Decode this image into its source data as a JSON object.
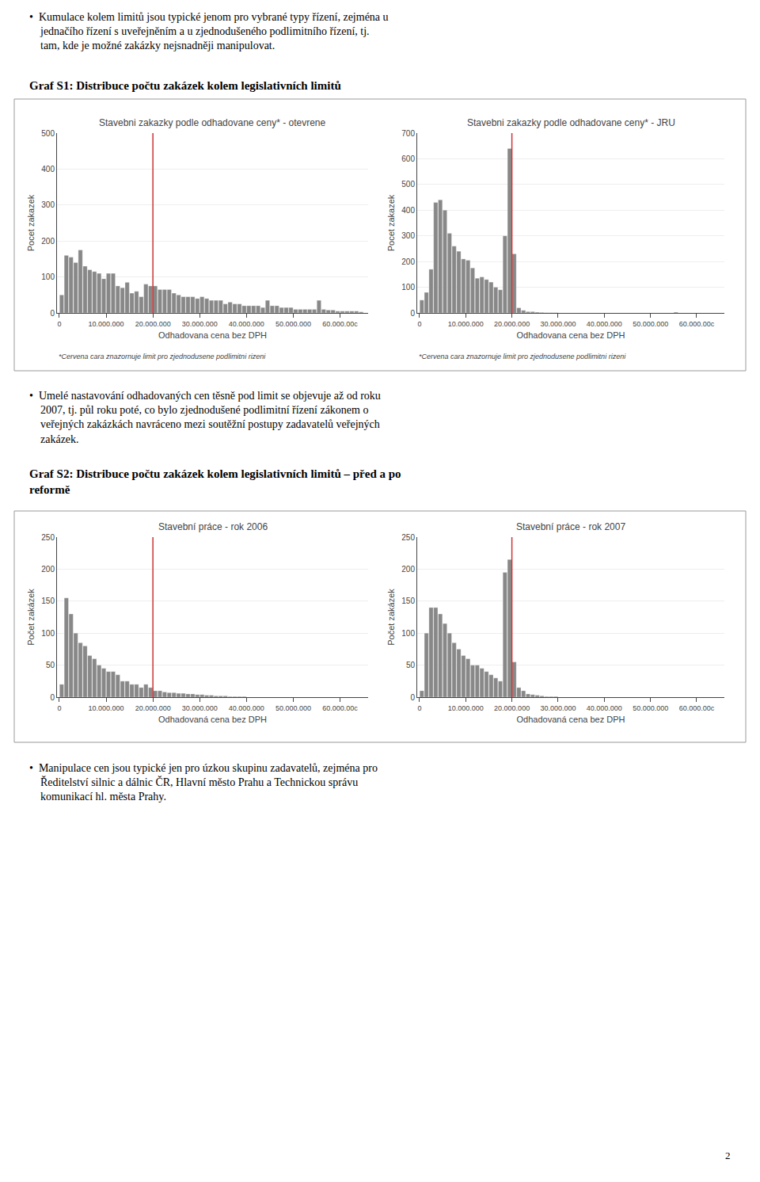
{
  "paragraphs": [
    [
      "•  Kumulace kolem limitů jsou typické jenom pro vybrané typy řízení, zejména u",
      "jednačího řízení s uveřejněním a u zjednodušeného podlimitního řízení, tj.",
      "tam, kde je možné zakázky nejsnadněji manipulovat."
    ],
    [
      "•  Umelé nastavování odhadovaných cen těsně pod limit se objevuje až od roku",
      "2007, tj. půl roku poté, co bylo zjednodušené podlimitní řízení zákonem o",
      "veřejných zakázkách navráceno mezi soutěžní postupy zadavatelů veřejných",
      "zakázek."
    ],
    [
      "•  Manipulace cen jsou typické jen pro úzkou skupinu zadavatelů, zejména pro",
      "Ředitelství silnic a dálnic ČR, Hlavní město Prahu a Technickou správu",
      "komunikací hl. města Prahy."
    ]
  ],
  "headings": [
    [
      "Graf S1: Distribuce počtu zakázek kolem legislativních limitů"
    ],
    [
      "Graf S2: Distribuce počtu zakázek kolem legislativních limitů – před a po",
      "reformě"
    ]
  ],
  "page_number": "2",
  "chart_data": [
    {
      "type": "histogram",
      "title": "Stavebni zakazky podle odhadovane ceny* - otevrene",
      "xlabel": "Odhadovana cena bez DPH",
      "ylabel": "Pocet zakazek",
      "footnote": "*Cervena cara znazornuje limit pro zjednodusene podlimitni rizeni",
      "color": "#888888",
      "bins": [
        0,
        1000000,
        2000000,
        3000000,
        4000000,
        5000000,
        6000000,
        7000000,
        8000000,
        9000000,
        10000000,
        11000000,
        12000000,
        13000000,
        14000000,
        15000000,
        16000000,
        17000000,
        18000000,
        19000000,
        20000000,
        21000000,
        22000000,
        23000000,
        24000000,
        25000000,
        26000000,
        27000000,
        28000000,
        29000000,
        30000000,
        31000000,
        32000000,
        33000000,
        34000000,
        35000000,
        36000000,
        37000000,
        38000000,
        39000000,
        40000000,
        41000000,
        42000000,
        43000000,
        44000000,
        45000000,
        46000000,
        47000000,
        48000000,
        49000000,
        50000000,
        51000000,
        52000000,
        53000000,
        54000000,
        55000000,
        56000000,
        57000000,
        58000000,
        59000000,
        60000000,
        61000000,
        62000000,
        63000000,
        64000000,
        65000000
      ],
      "values": [
        50,
        160,
        155,
        140,
        175,
        130,
        120,
        115,
        110,
        95,
        110,
        110,
        75,
        70,
        85,
        55,
        60,
        45,
        80,
        75,
        75,
        65,
        65,
        65,
        55,
        50,
        45,
        45,
        45,
        40,
        45,
        40,
        35,
        35,
        35,
        25,
        30,
        25,
        25,
        20,
        20,
        20,
        20,
        15,
        35,
        20,
        20,
        15,
        15,
        15,
        10,
        10,
        10,
        10,
        10,
        35,
        10,
        8,
        8,
        5,
        5,
        5,
        5,
        5,
        3
      ],
      "lines": [
        {
          "x": 20000000,
          "color": "#cc3333"
        }
      ],
      "xlim": [
        -500000,
        66000000
      ],
      "xticks": [
        0,
        {
          "value": 10000000,
          "label": "10.000.000"
        },
        {
          "value": 20000000,
          "label": "20.000.000"
        },
        {
          "value": 30000000,
          "label": "30.000.000"
        },
        {
          "value": 40000000,
          "label": "40.000.000"
        },
        {
          "value": 50000000,
          "label": "50.000.000"
        },
        {
          "value": 60000000,
          "label": "60.000.00c"
        }
      ],
      "ylim": [
        0,
        500
      ],
      "yticks": [
        0,
        100,
        200,
        300,
        400,
        500
      ],
      "grid": true
    },
    {
      "type": "histogram",
      "title": "Stavebni zakazky podle odhadovane ceny* - JRU",
      "xlabel": "Odhadovana cena bez DPH",
      "ylabel": "Pocet zakazek",
      "footnote": "*Cervena cara znazornuje limit pro zjednodusene podlimitni rizeni",
      "color": "#888888",
      "bins": [
        0,
        1000000,
        2000000,
        3000000,
        4000000,
        5000000,
        6000000,
        7000000,
        8000000,
        9000000,
        10000000,
        11000000,
        12000000,
        13000000,
        14000000,
        15000000,
        16000000,
        17000000,
        18000000,
        19000000,
        20000000,
        21000000,
        22000000,
        23000000,
        24000000,
        25000000,
        26000000,
        27000000,
        28000000,
        29000000,
        30000000,
        31000000,
        32000000,
        33000000,
        34000000,
        35000000,
        36000000,
        37000000,
        38000000,
        39000000,
        40000000,
        41000000,
        42000000,
        43000000,
        44000000,
        45000000,
        46000000,
        47000000,
        48000000,
        49000000,
        50000000,
        51000000,
        52000000,
        53000000,
        54000000,
        55000000,
        56000000,
        57000000,
        58000000,
        59000000,
        60000000,
        61000000,
        62000000,
        63000000,
        64000000,
        65000000
      ],
      "values": [
        50,
        80,
        170,
        430,
        440,
        400,
        310,
        260,
        240,
        210,
        205,
        175,
        135,
        140,
        130,
        120,
        100,
        90,
        300,
        640,
        230,
        20,
        10,
        5,
        5,
        3,
        2,
        1,
        1,
        1,
        0,
        0,
        0,
        0,
        0,
        0,
        0,
        0,
        0,
        0,
        0,
        0,
        0,
        0,
        0,
        0,
        0,
        0,
        0,
        0,
        0,
        0,
        0,
        0,
        0,
        3,
        0,
        0,
        0,
        0,
        0,
        0,
        0,
        0,
        0
      ],
      "lines": [
        {
          "x": 20000000,
          "color": "#cc3333"
        }
      ],
      "xlim": [
        -500000,
        66000000
      ],
      "xticks": [
        0,
        {
          "value": 10000000,
          "label": "10.000.000"
        },
        {
          "value": 20000000,
          "label": "20.000.000"
        },
        {
          "value": 30000000,
          "label": "30.000.000"
        },
        {
          "value": 40000000,
          "label": "40.000.000"
        },
        {
          "value": 50000000,
          "label": "50.000.000"
        },
        {
          "value": 60000000,
          "label": "60.000.00c"
        }
      ],
      "ylim": [
        0,
        700
      ],
      "yticks": [
        0,
        100,
        200,
        300,
        400,
        500,
        600,
        700
      ],
      "grid": true
    },
    {
      "type": "histogram",
      "title": "Stavební práce - rok 2006",
      "xlabel": "Odhadovaná cena bez DPH",
      "ylabel": "Počet zakázek",
      "color": "#888888",
      "bins": [
        0,
        1000000,
        2000000,
        3000000,
        4000000,
        5000000,
        6000000,
        7000000,
        8000000,
        9000000,
        10000000,
        11000000,
        12000000,
        13000000,
        14000000,
        15000000,
        16000000,
        17000000,
        18000000,
        19000000,
        20000000,
        21000000,
        22000000,
        23000000,
        24000000,
        25000000,
        26000000,
        27000000,
        28000000,
        29000000,
        30000000,
        31000000,
        32000000,
        33000000,
        34000000,
        35000000,
        36000000,
        37000000,
        38000000,
        39000000,
        40000000,
        41000000,
        42000000,
        43000000,
        44000000,
        45000000,
        46000000,
        47000000,
        48000000,
        49000000,
        50000000,
        51000000,
        52000000,
        53000000,
        54000000,
        55000000,
        56000000,
        57000000,
        58000000,
        59000000,
        60000000,
        61000000,
        62000000,
        63000000,
        64000000,
        65000000
      ],
      "values": [
        20,
        155,
        130,
        100,
        85,
        80,
        65,
        60,
        50,
        45,
        40,
        40,
        35,
        25,
        25,
        20,
        20,
        15,
        20,
        15,
        10,
        10,
        8,
        7,
        7,
        6,
        6,
        5,
        5,
        4,
        4,
        3,
        3,
        2,
        2,
        2,
        1,
        1,
        1,
        1,
        0,
        0,
        0,
        0,
        0,
        0,
        0,
        0,
        0,
        0,
        0,
        0,
        0,
        0,
        0,
        0,
        0,
        0,
        0,
        0,
        0,
        0,
        0,
        0,
        0
      ],
      "lines": [
        {
          "x": 20000000,
          "color": "#cc3333"
        }
      ],
      "xlim": [
        -500000,
        66000000
      ],
      "xticks": [
        0,
        {
          "value": 10000000,
          "label": "10.000.000"
        },
        {
          "value": 20000000,
          "label": "20.000.000"
        },
        {
          "value": 30000000,
          "label": "30.000.000"
        },
        {
          "value": 40000000,
          "label": "40.000.000"
        },
        {
          "value": 50000000,
          "label": "50.000.000"
        },
        {
          "value": 60000000,
          "label": "60.000.00c"
        }
      ],
      "ylim": [
        0,
        250
      ],
      "yticks": [
        0,
        50,
        100,
        150,
        200,
        250
      ],
      "grid": true
    },
    {
      "type": "histogram",
      "title": "Stavební práce - rok 2007",
      "xlabel": "Odhadovaná cena bez DPH",
      "ylabel": "Počet zakázek",
      "color": "#888888",
      "bins": [
        0,
        1000000,
        2000000,
        3000000,
        4000000,
        5000000,
        6000000,
        7000000,
        8000000,
        9000000,
        10000000,
        11000000,
        12000000,
        13000000,
        14000000,
        15000000,
        16000000,
        17000000,
        18000000,
        19000000,
        20000000,
        21000000,
        22000000,
        23000000,
        24000000,
        25000000,
        26000000,
        27000000,
        28000000,
        29000000,
        30000000,
        31000000,
        32000000,
        33000000,
        34000000,
        35000000,
        36000000,
        37000000,
        38000000,
        39000000,
        40000000,
        41000000,
        42000000,
        43000000,
        44000000,
        45000000,
        46000000,
        47000000,
        48000000,
        49000000,
        50000000,
        51000000,
        52000000,
        53000000,
        54000000,
        55000000,
        56000000,
        57000000,
        58000000,
        59000000,
        60000000,
        61000000,
        62000000,
        63000000,
        64000000,
        65000000
      ],
      "values": [
        10,
        100,
        140,
        140,
        130,
        115,
        100,
        85,
        75,
        65,
        60,
        50,
        50,
        45,
        40,
        35,
        30,
        25,
        195,
        215,
        55,
        15,
        10,
        5,
        4,
        3,
        2,
        1,
        1,
        1,
        0,
        0,
        0,
        0,
        0,
        0,
        0,
        0,
        0,
        0,
        0,
        0,
        0,
        0,
        0,
        0,
        0,
        0,
        0,
        0,
        0,
        0,
        0,
        0,
        0,
        0,
        0,
        0,
        0,
        0,
        0,
        0,
        0,
        0,
        0
      ],
      "lines": [
        {
          "x": 20000000,
          "color": "#cc3333"
        }
      ],
      "xlim": [
        -500000,
        66000000
      ],
      "xticks": [
        0,
        {
          "value": 10000000,
          "label": "10.000.000"
        },
        {
          "value": 20000000,
          "label": "20.000.000"
        },
        {
          "value": 30000000,
          "label": "30.000.000"
        },
        {
          "value": 40000000,
          "label": "40.000.000"
        },
        {
          "value": 50000000,
          "label": "50.000.000"
        },
        {
          "value": 60000000,
          "label": "60.000.00c"
        }
      ],
      "ylim": [
        0,
        250
      ],
      "yticks": [
        0,
        50,
        100,
        150,
        200,
        250
      ],
      "grid": true
    }
  ]
}
